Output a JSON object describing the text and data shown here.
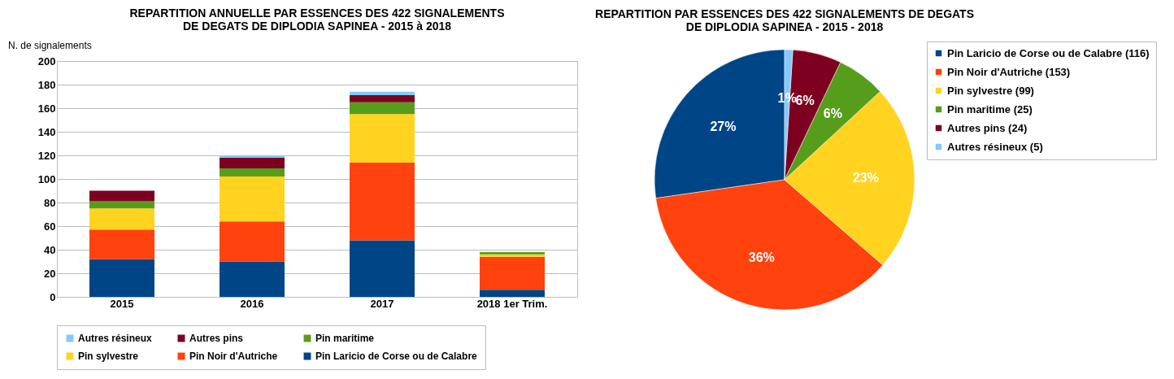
{
  "chart_data": [
    {
      "type": "bar",
      "title": "REPARTITION ANNUELLE PAR ESSENCES DES 422 SIGNALEMENTS\nDE DEGATS DE DIPLODIA SAPINEA - 2015 à 2018",
      "ylabel": "N. de signalements",
      "categories": [
        "2015",
        "2016",
        "2017",
        "2018 1er Trim."
      ],
      "stacked": true,
      "ylim": [
        0,
        200
      ],
      "yticks": [
        0,
        20,
        40,
        60,
        80,
        100,
        120,
        140,
        160,
        180,
        200
      ],
      "grid": "y",
      "legend": "bottom",
      "series": [
        {
          "name": "Pin Laricio de Corse ou de Calabre",
          "color": "#004586",
          "values": [
            32,
            30,
            48,
            6
          ]
        },
        {
          "name": "Pin Noir d'Autriche",
          "color": "#ff420e",
          "values": [
            25,
            34,
            66,
            28
          ]
        },
        {
          "name": "Pin sylvestre",
          "color": "#ffd320",
          "values": [
            18,
            38,
            41,
            2
          ]
        },
        {
          "name": "Pin maritime",
          "color": "#579d1c",
          "values": [
            6,
            7,
            10,
            2
          ]
        },
        {
          "name": "Autres pins",
          "color": "#7e0021",
          "values": [
            9,
            9,
            6,
            0
          ]
        },
        {
          "name": "Autres résineux",
          "color": "#83caff",
          "values": [
            0,
            2,
            3,
            0
          ]
        }
      ]
    },
    {
      "type": "pie",
      "title": "REPARTITION PAR ESSENCES DES 422 SIGNALEMENTS DE DEGATS\nDE DIPLODIA SAPINEA - 2015 - 2018",
      "legend": "right",
      "categories": [
        "Pin Laricio de Corse ou de Calabre (116)",
        "Pin Noir d'Autriche (153)",
        "Pin sylvestre (99)",
        "Pin maritime (25)",
        "Autres pins (24)",
        "Autres résineux (5)"
      ],
      "values": [
        27,
        36,
        23,
        6,
        6,
        1
      ],
      "colors": [
        "#004586",
        "#ff420e",
        "#ffd320",
        "#579d1c",
        "#7e0021",
        "#83caff"
      ],
      "value_labels": [
        "27%",
        "36%",
        "23%",
        "6%",
        "6%",
        "1%"
      ]
    }
  ]
}
